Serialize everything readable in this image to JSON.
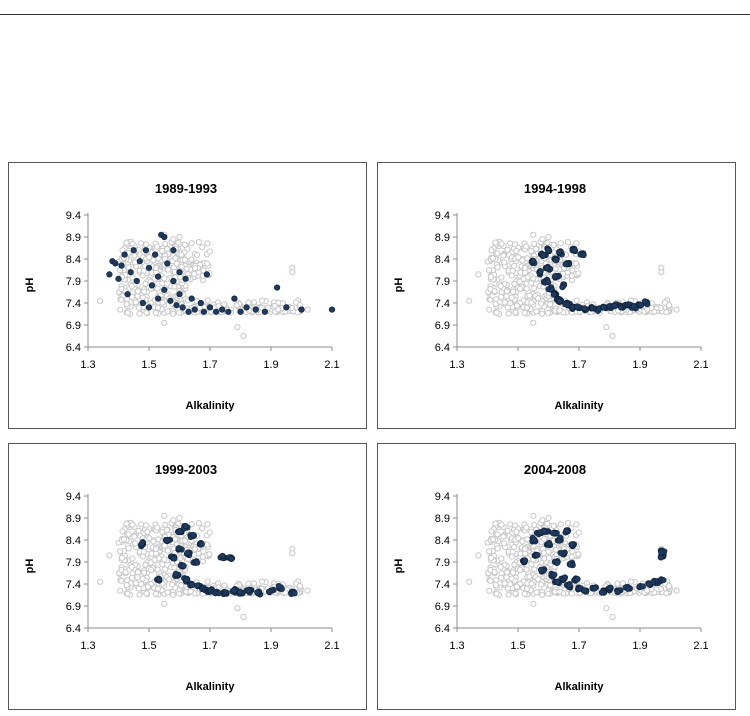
{
  "chart_data": [
    {
      "type": "scatter",
      "title": "1989-1993",
      "xlabel": "Alkalinity",
      "ylabel": "pH",
      "xlim": [
        1.3,
        2.1
      ],
      "ylim": [
        6.4,
        9.4
      ],
      "xticks": [
        "1.3",
        "1.5",
        "1.7",
        "1.9",
        "2.1"
      ],
      "yticks": [
        "6.4",
        "6.9",
        "7.4",
        "7.9",
        "8.4",
        "8.9",
        "9.4"
      ],
      "grid": false,
      "legend": "none",
      "background_points_color": "#c8c8c8",
      "highlight_points_color": "#1f3a5f",
      "highlight_points": [
        [
          1.37,
          8.05
        ],
        [
          1.38,
          8.35
        ],
        [
          1.39,
          8.3
        ],
        [
          1.4,
          7.95
        ],
        [
          1.41,
          8.25
        ],
        [
          1.42,
          8.5
        ],
        [
          1.43,
          7.6
        ],
        [
          1.44,
          8.1
        ],
        [
          1.45,
          8.6
        ],
        [
          1.46,
          7.9
        ],
        [
          1.47,
          8.35
        ],
        [
          1.48,
          7.4
        ],
        [
          1.49,
          8.6
        ],
        [
          1.5,
          7.3
        ],
        [
          1.5,
          8.2
        ],
        [
          1.51,
          7.8
        ],
        [
          1.52,
          8.5
        ],
        [
          1.53,
          7.5
        ],
        [
          1.53,
          8.0
        ],
        [
          1.54,
          8.95
        ],
        [
          1.55,
          8.9
        ],
        [
          1.55,
          7.7
        ],
        [
          1.56,
          8.3
        ],
        [
          1.57,
          7.45
        ],
        [
          1.58,
          8.6
        ],
        [
          1.58,
          7.9
        ],
        [
          1.59,
          7.35
        ],
        [
          1.6,
          8.1
        ],
        [
          1.6,
          7.6
        ],
        [
          1.61,
          7.3
        ],
        [
          1.62,
          7.95
        ],
        [
          1.63,
          7.2
        ],
        [
          1.64,
          7.5
        ],
        [
          1.65,
          7.25
        ],
        [
          1.67,
          7.4
        ],
        [
          1.68,
          7.2
        ],
        [
          1.69,
          8.05
        ],
        [
          1.7,
          7.3
        ],
        [
          1.72,
          7.2
        ],
        [
          1.74,
          7.25
        ],
        [
          1.76,
          7.2
        ],
        [
          1.78,
          7.5
        ],
        [
          1.8,
          7.2
        ],
        [
          1.82,
          7.3
        ],
        [
          1.85,
          7.25
        ],
        [
          1.88,
          7.2
        ],
        [
          1.92,
          7.75
        ],
        [
          1.95,
          7.3
        ],
        [
          2.0,
          7.25
        ],
        [
          2.1,
          7.25
        ]
      ]
    },
    {
      "type": "scatter",
      "title": "1994-1998",
      "xlabel": "Alkalinity",
      "ylabel": "pH",
      "xlim": [
        1.3,
        2.1
      ],
      "ylim": [
        6.4,
        9.4
      ],
      "xticks": [
        "1.3",
        "1.5",
        "1.7",
        "1.9",
        "2.1"
      ],
      "yticks": [
        "6.4",
        "6.9",
        "7.4",
        "7.9",
        "8.4",
        "8.9",
        "9.4"
      ],
      "grid": false,
      "legend": "none",
      "background_points_color": "#c8c8c8",
      "highlight_points_color": "#1f3a5f",
      "highlight_points": [
        [
          1.55,
          8.35
        ],
        [
          1.57,
          8.1
        ],
        [
          1.58,
          8.5
        ],
        [
          1.59,
          7.9
        ],
        [
          1.6,
          8.6
        ],
        [
          1.6,
          8.2
        ],
        [
          1.61,
          7.7
        ],
        [
          1.62,
          8.4
        ],
        [
          1.62,
          7.6
        ],
        [
          1.63,
          8.0
        ],
        [
          1.63,
          7.5
        ],
        [
          1.64,
          8.55
        ],
        [
          1.64,
          7.45
        ],
        [
          1.65,
          7.8
        ],
        [
          1.66,
          7.4
        ],
        [
          1.66,
          8.3
        ],
        [
          1.67,
          7.35
        ],
        [
          1.68,
          8.6
        ],
        [
          1.68,
          7.3
        ],
        [
          1.7,
          7.3
        ],
        [
          1.71,
          8.5
        ],
        [
          1.72,
          7.25
        ],
        [
          1.74,
          7.3
        ],
        [
          1.76,
          7.25
        ],
        [
          1.78,
          7.3
        ],
        [
          1.8,
          7.3
        ],
        [
          1.82,
          7.35
        ],
        [
          1.84,
          7.3
        ],
        [
          1.86,
          7.35
        ],
        [
          1.88,
          7.3
        ],
        [
          1.9,
          7.35
        ],
        [
          1.92,
          7.4
        ]
      ]
    },
    {
      "type": "scatter",
      "title": "1999-2003",
      "xlabel": "Alkalinity",
      "ylabel": "pH",
      "xlim": [
        1.3,
        2.1
      ],
      "ylim": [
        6.4,
        9.4
      ],
      "xticks": [
        "1.3",
        "1.5",
        "1.7",
        "1.9",
        "2.1"
      ],
      "yticks": [
        "6.4",
        "6.9",
        "7.4",
        "7.9",
        "8.4",
        "8.9",
        "9.4"
      ],
      "grid": false,
      "legend": "none",
      "background_points_color": "#c8c8c8",
      "highlight_points_color": "#1f3a5f",
      "highlight_points": [
        [
          1.48,
          8.3
        ],
        [
          1.53,
          7.5
        ],
        [
          1.56,
          8.4
        ],
        [
          1.58,
          8.0
        ],
        [
          1.59,
          7.6
        ],
        [
          1.6,
          8.6
        ],
        [
          1.6,
          8.2
        ],
        [
          1.61,
          7.8
        ],
        [
          1.62,
          8.7
        ],
        [
          1.62,
          7.5
        ],
        [
          1.63,
          8.1
        ],
        [
          1.64,
          8.5
        ],
        [
          1.64,
          7.4
        ],
        [
          1.65,
          7.9
        ],
        [
          1.66,
          7.35
        ],
        [
          1.67,
          8.3
        ],
        [
          1.68,
          7.3
        ],
        [
          1.69,
          7.25
        ],
        [
          1.7,
          7.25
        ],
        [
          1.72,
          7.2
        ],
        [
          1.74,
          8.0
        ],
        [
          1.75,
          7.2
        ],
        [
          1.77,
          8.0
        ],
        [
          1.78,
          7.25
        ],
        [
          1.8,
          7.2
        ],
        [
          1.83,
          7.25
        ],
        [
          1.86,
          7.2
        ],
        [
          1.9,
          7.25
        ],
        [
          1.93,
          7.3
        ],
        [
          1.97,
          7.2
        ]
      ]
    },
    {
      "type": "scatter",
      "title": "2004-2008",
      "xlabel": "Alkalinity",
      "ylabel": "pH",
      "xlim": [
        1.3,
        2.1
      ],
      "ylim": [
        6.4,
        9.4
      ],
      "xticks": [
        "1.3",
        "1.5",
        "1.7",
        "1.9",
        "2.1"
      ],
      "yticks": [
        "6.4",
        "6.9",
        "7.4",
        "7.9",
        "8.4",
        "8.9",
        "9.4"
      ],
      "grid": false,
      "legend": "none",
      "background_points_color": "#c8c8c8",
      "highlight_points_color": "#1f3a5f",
      "highlight_points": [
        [
          1.52,
          7.9
        ],
        [
          1.55,
          8.4
        ],
        [
          1.56,
          8.05
        ],
        [
          1.57,
          8.55
        ],
        [
          1.58,
          7.7
        ],
        [
          1.59,
          8.6
        ],
        [
          1.6,
          8.3
        ],
        [
          1.61,
          7.6
        ],
        [
          1.62,
          8.55
        ],
        [
          1.63,
          7.9
        ],
        [
          1.63,
          7.45
        ],
        [
          1.64,
          8.4
        ],
        [
          1.65,
          8.1
        ],
        [
          1.65,
          7.5
        ],
        [
          1.66,
          8.6
        ],
        [
          1.67,
          7.85
        ],
        [
          1.67,
          7.35
        ],
        [
          1.68,
          8.3
        ],
        [
          1.69,
          7.5
        ],
        [
          1.7,
          7.3
        ],
        [
          1.72,
          7.25
        ],
        [
          1.75,
          7.3
        ],
        [
          1.78,
          7.25
        ],
        [
          1.8,
          7.3
        ],
        [
          1.83,
          7.25
        ],
        [
          1.86,
          7.3
        ],
        [
          1.9,
          7.35
        ],
        [
          1.93,
          7.4
        ],
        [
          1.95,
          7.45
        ],
        [
          1.97,
          7.5
        ],
        [
          1.97,
          8.05
        ],
        [
          1.97,
          8.15
        ]
      ]
    }
  ]
}
